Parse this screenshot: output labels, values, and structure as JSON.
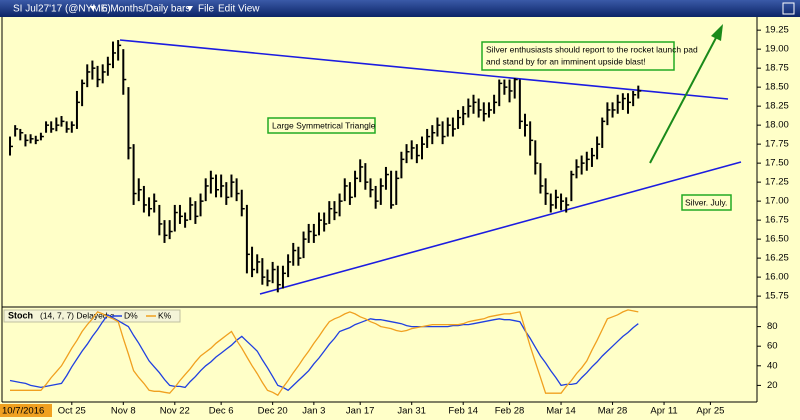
{
  "header": {
    "symbol": "SI Jul27'17 (@NYME)",
    "interval": "6 Months/Daily bars",
    "menus": [
      "File",
      "Edit",
      "View"
    ]
  },
  "chart_data": {
    "type": "ohlc",
    "color": "#000000",
    "categories": [
      "10/7/2016",
      null,
      null,
      null,
      null,
      null,
      null,
      null,
      null,
      null,
      null,
      null,
      "Oct 25",
      null,
      null,
      null,
      null,
      null,
      null,
      null,
      null,
      null,
      "Nov 8",
      null,
      null,
      null,
      null,
      null,
      null,
      null,
      null,
      null,
      "Nov 22",
      null,
      null,
      null,
      null,
      null,
      null,
      null,
      null,
      "Dec 6",
      null,
      null,
      null,
      null,
      null,
      null,
      null,
      null,
      null,
      "Dec 20",
      null,
      null,
      null,
      null,
      null,
      null,
      null,
      "Jan 3",
      null,
      null,
      null,
      null,
      null,
      null,
      null,
      null,
      "Jan 17",
      null,
      null,
      null,
      null,
      null,
      null,
      null,
      null,
      null,
      "Jan 31",
      null,
      null,
      null,
      null,
      null,
      null,
      null,
      null,
      null,
      "Feb 14",
      null,
      null,
      null,
      null,
      null,
      null,
      null,
      null,
      "Feb 28",
      null,
      null,
      null,
      null,
      null,
      null,
      null,
      null,
      null,
      "Mar 14",
      null,
      null,
      null,
      null,
      null,
      null,
      null,
      null,
      null,
      "Mar 28",
      null,
      null,
      null,
      null,
      null,
      null,
      null,
      null,
      null,
      "Apr 11",
      null,
      null,
      null,
      null,
      null,
      null,
      null,
      null,
      "Apr 25",
      null,
      null,
      null,
      null,
      null,
      null,
      null,
      null
    ],
    "high": [
      17.85,
      18.0,
      17.95,
      17.88,
      17.88,
      17.86,
      17.9,
      18.05,
      18.05,
      18.1,
      18.12,
      18.05,
      18.05,
      18.45,
      18.6,
      18.8,
      18.85,
      18.78,
      18.8,
      18.9,
      19.1,
      19.12,
      19.0,
      18.5,
      17.75,
      17.3,
      17.2,
      17.05,
      17.1,
      16.95,
      16.75,
      16.75,
      16.95,
      16.95,
      16.85,
      17.05,
      17.0,
      17.1,
      17.3,
      17.4,
      17.35,
      17.35,
      17.25,
      17.35,
      17.3,
      17.15,
      16.95,
      16.4,
      16.3,
      16.25,
      16.1,
      16.2,
      16.15,
      16.15,
      16.3,
      16.45,
      16.4,
      16.6,
      16.7,
      16.7,
      16.85,
      16.85,
      17.0,
      17.0,
      17.1,
      17.3,
      17.25,
      17.4,
      17.55,
      17.5,
      17.3,
      17.2,
      17.3,
      17.45,
      17.4,
      17.4,
      17.65,
      17.75,
      17.8,
      17.75,
      17.85,
      17.95,
      18.0,
      18.1,
      18.05,
      18.1,
      18.1,
      18.2,
      18.25,
      18.35,
      18.4,
      18.35,
      18.3,
      18.3,
      18.4,
      18.6,
      18.6,
      18.6,
      18.62,
      18.6,
      18.15,
      18.05,
      17.8,
      17.5,
      17.3,
      17.1,
      17.15,
      17.1,
      17.05,
      17.4,
      17.55,
      17.6,
      17.65,
      17.7,
      17.85,
      18.1,
      18.3,
      18.3,
      18.4,
      18.42,
      18.42,
      18.45,
      18.52,
      null,
      null,
      null,
      null,
      null,
      null,
      null,
      null,
      null,
      null,
      null,
      null,
      null,
      null,
      null,
      null,
      null,
      null,
      null,
      null,
      null,
      null
    ],
    "low": [
      17.6,
      17.85,
      17.8,
      17.72,
      17.76,
      17.75,
      17.8,
      17.9,
      17.9,
      17.92,
      17.98,
      17.9,
      17.9,
      17.95,
      18.25,
      18.5,
      18.6,
      18.5,
      18.55,
      18.65,
      18.75,
      18.85,
      18.4,
      17.55,
      16.95,
      17.0,
      16.85,
      16.8,
      16.85,
      16.55,
      16.45,
      16.5,
      16.6,
      16.7,
      16.65,
      16.75,
      16.7,
      16.8,
      17.0,
      17.1,
      17.05,
      17.05,
      16.95,
      17.05,
      17.0,
      16.8,
      16.05,
      16.0,
      16.05,
      15.9,
      15.88,
      15.92,
      15.8,
      15.85,
      16.0,
      16.15,
      16.15,
      16.25,
      16.45,
      16.45,
      16.55,
      16.6,
      16.7,
      16.75,
      16.8,
      17.0,
      16.95,
      17.05,
      17.25,
      17.15,
      17.05,
      16.9,
      16.95,
      17.15,
      16.9,
      16.95,
      17.3,
      17.5,
      17.55,
      17.5,
      17.55,
      17.7,
      17.75,
      17.85,
      17.75,
      17.85,
      17.85,
      17.95,
      18.0,
      18.1,
      18.15,
      18.1,
      18.05,
      18.1,
      18.15,
      18.25,
      18.4,
      18.3,
      18.35,
      17.95,
      17.85,
      17.6,
      17.35,
      17.1,
      16.95,
      16.85,
      16.9,
      16.88,
      16.85,
      17.0,
      17.3,
      17.35,
      17.4,
      17.45,
      17.55,
      17.7,
      18.0,
      18.1,
      18.15,
      18.2,
      18.15,
      18.25,
      18.35,
      null,
      null,
      null,
      null,
      null,
      null,
      null,
      null,
      null,
      null,
      null,
      null,
      null,
      null,
      null,
      null,
      null,
      null,
      null,
      null,
      null,
      null
    ],
    "close": [
      17.72,
      17.95,
      17.9,
      17.8,
      17.82,
      17.8,
      17.85,
      18.0,
      17.95,
      18.0,
      18.05,
      17.95,
      18.0,
      18.3,
      18.55,
      18.7,
      18.75,
      18.6,
      18.7,
      18.8,
      18.95,
      19.05,
      18.6,
      17.7,
      17.1,
      17.15,
      16.95,
      16.9,
      17.0,
      16.7,
      16.55,
      16.6,
      16.85,
      16.8,
      16.75,
      16.95,
      16.8,
      17.0,
      17.2,
      17.3,
      17.15,
      17.2,
      17.05,
      17.25,
      17.1,
      16.9,
      16.3,
      16.1,
      16.2,
      16.0,
      15.95,
      16.1,
      15.9,
      16.05,
      16.2,
      16.35,
      16.25,
      16.5,
      16.6,
      16.55,
      16.75,
      16.7,
      16.9,
      16.85,
      17.0,
      17.2,
      17.05,
      17.3,
      17.45,
      17.25,
      17.15,
      17.0,
      17.2,
      17.35,
      16.95,
      17.3,
      17.55,
      17.65,
      17.7,
      17.6,
      17.75,
      17.85,
      17.9,
      18.0,
      17.85,
      18.0,
      17.95,
      18.1,
      18.15,
      18.25,
      18.3,
      18.2,
      18.15,
      18.2,
      18.3,
      18.55,
      18.5,
      18.45,
      18.6,
      18.05,
      18.0,
      17.8,
      17.5,
      17.2,
      17.1,
      16.95,
      17.05,
      17.0,
      16.95,
      17.35,
      17.45,
      17.5,
      17.55,
      17.6,
      17.75,
      18.05,
      18.2,
      18.2,
      18.3,
      18.35,
      18.3,
      18.4,
      18.45,
      null,
      null,
      null,
      null,
      null,
      null,
      null,
      null,
      null,
      null,
      null,
      null,
      null,
      null,
      null,
      null,
      null,
      null,
      null,
      null,
      null,
      null
    ],
    "ylim": [
      15.62,
      19.41
    ],
    "yticks": [
      15.75,
      {
        "value": 16,
        "label": "16.00"
      },
      16.25,
      {
        "value": 16.5,
        "label": "16.50"
      },
      16.75,
      {
        "value": 17,
        "label": "17.00"
      },
      17.25,
      {
        "value": 17.5,
        "label": "17.50"
      },
      17.75,
      {
        "value": 18,
        "label": "18.00"
      },
      18.25,
      {
        "value": 18.5,
        "label": "18.50"
      },
      18.75,
      {
        "value": 19,
        "label": "19.00"
      },
      19.25
    ],
    "notes": {
      "triangle": "Large Symmetrical Triangle",
      "rocket": [
        "Silver enthusiasts should report to the rocket launch pad",
        "and stand by for an imminent upside blast!"
      ],
      "contract": "Silver. July."
    },
    "stoch": {
      "type": "line",
      "label": "Stoch",
      "params": "(14, 7, 7) Delayed e",
      "ylim": [
        0,
        100
      ],
      "yticks": [
        20,
        40,
        60,
        80
      ],
      "series": [
        {
          "name": "D%",
          "color": "#2040e0",
          "values": [
            25,
            24,
            23,
            22,
            20,
            19,
            18,
            19,
            20,
            21,
            22,
            30,
            39,
            47,
            55,
            62,
            70,
            77,
            85,
            92,
            89,
            86,
            83,
            80,
            71,
            63,
            54,
            45,
            39,
            33,
            26,
            20,
            19,
            19,
            18,
            24,
            29,
            35,
            40,
            44,
            49,
            53,
            57,
            61,
            66,
            70,
            65,
            60,
            55,
            46,
            38,
            29,
            20,
            18,
            15,
            20,
            25,
            30,
            35,
            42,
            48,
            55,
            62,
            68,
            75,
            77,
            79,
            82,
            84,
            86,
            88,
            87,
            87,
            86,
            85,
            84,
            83,
            81,
            80,
            80,
            80,
            80,
            80,
            80,
            80,
            80,
            81,
            81,
            82,
            82,
            83,
            84,
            85,
            86,
            87,
            88,
            87,
            87,
            86,
            85,
            76,
            68,
            59,
            50,
            43,
            35,
            28,
            20,
            21,
            21,
            22,
            28,
            33,
            39,
            44,
            50,
            55,
            60,
            65,
            70,
            74,
            79,
            83,
            null,
            null,
            null,
            null,
            null,
            null,
            null,
            null,
            null,
            null,
            null,
            null,
            null,
            null,
            null,
            null,
            null,
            null,
            null,
            null,
            null,
            null
          ]
        },
        {
          "name": "K%",
          "color": "#f0a020",
          "values": [
            15,
            15,
            15,
            15,
            15,
            15,
            15,
            21,
            28,
            34,
            40,
            49,
            58,
            66,
            75,
            82,
            88,
            95,
            93,
            90,
            88,
            85,
            68,
            52,
            35,
            28,
            22,
            15,
            14,
            14,
            13,
            12,
            18,
            25,
            31,
            37,
            44,
            50,
            54,
            58,
            63,
            67,
            71,
            75,
            66,
            58,
            49,
            40,
            32,
            23,
            15,
            13,
            10,
            18,
            25,
            33,
            40,
            48,
            55,
            63,
            70,
            78,
            85,
            88,
            90,
            93,
            95,
            93,
            90,
            88,
            85,
            83,
            80,
            79,
            78,
            76,
            75,
            76,
            78,
            79,
            80,
            81,
            82,
            82,
            82,
            82,
            82,
            82,
            83,
            85,
            86,
            87,
            88,
            90,
            91,
            92,
            93,
            93,
            94,
            95,
            78,
            60,
            44,
            28,
            12,
            12,
            12,
            12,
            19,
            25,
            32,
            38,
            45,
            56,
            66,
            77,
            88,
            90,
            92,
            95,
            97,
            96,
            95,
            null,
            null,
            null,
            null,
            null,
            null,
            null,
            null,
            null,
            null,
            null,
            null,
            null,
            null,
            null,
            null,
            null,
            null,
            null,
            null,
            null,
            null
          ]
        }
      ]
    }
  }
}
